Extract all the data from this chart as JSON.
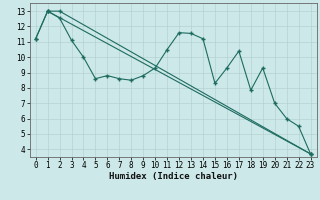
{
  "xlabel": "Humidex (Indice chaleur)",
  "bg_color": "#cce8e8",
  "line_color": "#1e6b60",
  "grid_color_major": "#b8d8d8",
  "grid_color_minor": "#d4e8e8",
  "xlim": [
    -0.5,
    23.5
  ],
  "ylim": [
    3.5,
    13.5
  ],
  "yticks": [
    4,
    5,
    6,
    7,
    8,
    9,
    10,
    11,
    12,
    13
  ],
  "xticks": [
    0,
    1,
    2,
    3,
    4,
    5,
    6,
    7,
    8,
    9,
    10,
    11,
    12,
    13,
    14,
    15,
    16,
    17,
    18,
    19,
    20,
    21,
    22,
    23
  ],
  "line1_x": [
    0,
    1,
    2,
    23
  ],
  "line1_y": [
    11.2,
    13.0,
    13.0,
    3.7
  ],
  "line2_x": [
    1,
    2,
    3,
    4,
    5,
    6,
    7,
    8,
    9,
    10,
    11,
    12,
    13,
    14,
    15,
    16,
    17,
    18,
    19,
    20,
    21,
    22,
    23
  ],
  "line2_y": [
    13.0,
    12.55,
    11.1,
    10.0,
    8.6,
    8.8,
    8.6,
    8.5,
    8.8,
    9.3,
    10.5,
    11.6,
    11.55,
    11.2,
    8.3,
    9.3,
    10.4,
    7.85,
    9.3,
    7.0,
    6.0,
    5.5,
    3.7
  ],
  "line3_x": [
    0,
    1,
    23
  ],
  "line3_y": [
    11.2,
    13.0,
    3.7
  ],
  "tick_fontsize": 5.5,
  "xlabel_fontsize": 6.5
}
